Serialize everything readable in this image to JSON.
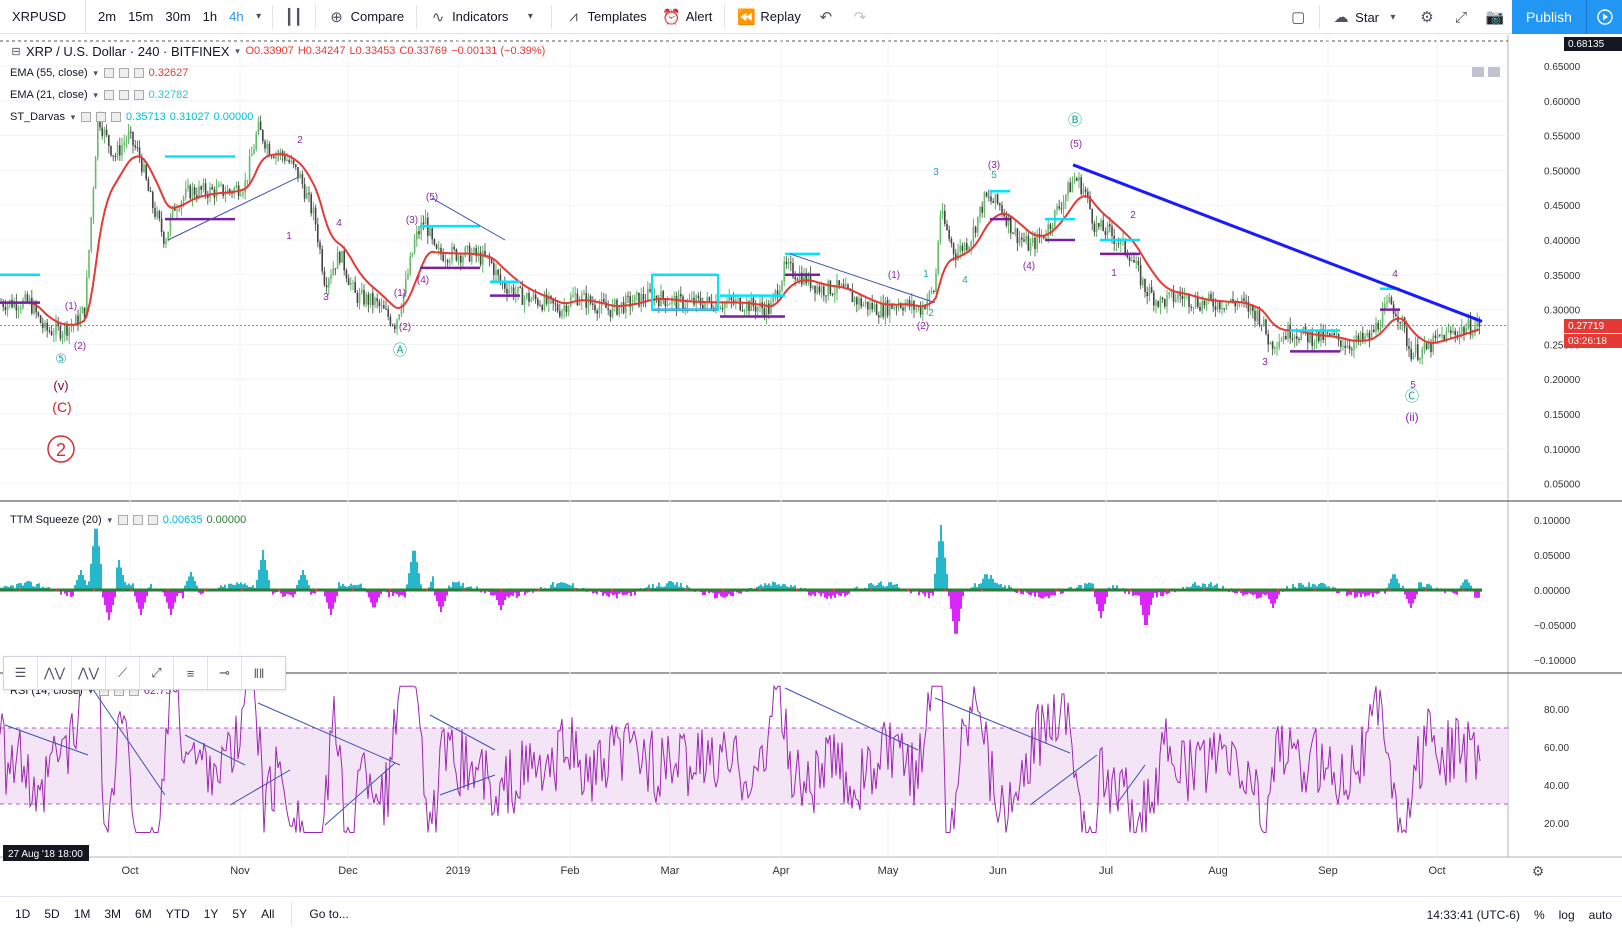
{
  "toolbar": {
    "symbol": "XRPUSD",
    "intervals": [
      "2m",
      "15m",
      "30m",
      "1h",
      "4h"
    ],
    "active_interval": "4h",
    "compare": "Compare",
    "indicators": "Indicators",
    "templates": "Templates",
    "alert": "Alert",
    "replay": "Replay",
    "star": "Star",
    "publish": "Publish"
  },
  "main_pane": {
    "title": "XRP / U.S. Dollar · 240 · BITFINEX",
    "ohlc": {
      "o": "O0.33907",
      "h": "H0.34247",
      "l": "L0.33453",
      "c": "C0.33769",
      "chg": "−0.00131 (−0.39%)"
    },
    "ema55": {
      "label": "EMA (55, close)",
      "value": "0.32627"
    },
    "ema21": {
      "label": "EMA (21, close)",
      "value": "0.32782"
    },
    "darvas": {
      "label": "ST_Darvas",
      "v1": "0.35713",
      "v2": "0.31027",
      "v3": "0.00000"
    },
    "price_axis": [
      "0.65000",
      "0.60000",
      "0.55000",
      "0.50000",
      "0.45000",
      "0.40000",
      "0.35000",
      "0.30000",
      "0.25000",
      "0.20000",
      "0.15000",
      "0.10000",
      "0.05000"
    ],
    "crosshair_price": "0.68135",
    "last_price": "0.27719",
    "countdown": "03:26:18",
    "wave_labels": [
      "(v)",
      "(C)",
      "2",
      "Ⓐ",
      "Ⓑ",
      "Ⓒ",
      "(ii)",
      "(5)",
      "(2)",
      "(1)",
      "(3)",
      "(4)",
      "1",
      "2",
      "3",
      "4",
      "5",
      "⑤"
    ]
  },
  "squeeze_pane": {
    "label": "TTM Squeeze (20)",
    "v1": "0.00635",
    "v2": "0.00000",
    "axis": [
      "0.10000",
      "0.05000",
      "0.00000",
      "−0.05000",
      "−0.10000"
    ]
  },
  "rsi_pane": {
    "label": "RSI (14, close)",
    "value": "62.75",
    "axis": [
      "80.00",
      "60.00",
      "40.00",
      "20.00"
    ]
  },
  "time_axis": {
    "cursor_label": "27 Aug '18   18:00",
    "ticks": [
      "Oct",
      "Nov",
      "Dec",
      "2019",
      "Feb",
      "Mar",
      "Apr",
      "May",
      "Jun",
      "Jul",
      "Aug",
      "Sep",
      "Oct"
    ]
  },
  "bottombar": {
    "ranges": [
      "1D",
      "5D",
      "1M",
      "3M",
      "6M",
      "YTD",
      "1Y",
      "5Y",
      "All"
    ],
    "goto": "Go to...",
    "time": "14:33:41 (UTC-6)",
    "pct": "%",
    "log": "log",
    "auto": "auto"
  },
  "colors": {
    "accent": "#2196f3",
    "ema55": "#e53935",
    "ema21": "#4dd0e1",
    "darvas": "#00e5ff",
    "trendline": "#1a1aff",
    "wave": "#9c27b0",
    "rsi": "#9c27b0",
    "rsi_band": "#f3e5f5"
  }
}
